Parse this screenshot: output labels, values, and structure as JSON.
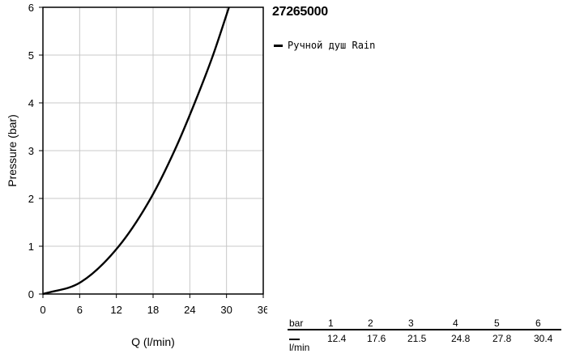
{
  "header": {
    "product_code": "27265000"
  },
  "legend": {
    "label": "Ручной душ Rain"
  },
  "chart_data": {
    "type": "line",
    "title": "27265000",
    "xlabel": "Q (l/min)",
    "ylabel": "Pressure (bar)",
    "xlim": [
      0,
      36
    ],
    "ylim": [
      0,
      6
    ],
    "xticks": [
      0,
      6,
      12,
      18,
      24,
      30,
      36
    ],
    "yticks": [
      0,
      1,
      2,
      3,
      4,
      5,
      6
    ],
    "grid": true,
    "legend_position": "top-right outside",
    "series": [
      {
        "name": "Ручной душ Rain",
        "color": "#000000",
        "points": [
          {
            "x": 0,
            "y": 0
          },
          {
            "x": 6.2,
            "y": 0.25
          },
          {
            "x": 12.4,
            "y": 1
          },
          {
            "x": 17.6,
            "y": 2
          },
          {
            "x": 21.5,
            "y": 3
          },
          {
            "x": 24.8,
            "y": 4
          },
          {
            "x": 27.8,
            "y": 5
          },
          {
            "x": 30.4,
            "y": 6
          }
        ]
      }
    ]
  },
  "table": {
    "row_bar_unit": "bar",
    "row_lmin_unit": "l/min",
    "bar_values": [
      "1",
      "2",
      "3",
      "4",
      "5",
      "6"
    ],
    "lmin_values": [
      "12.4",
      "17.6",
      "21.5",
      "24.8",
      "27.8",
      "30.4"
    ]
  }
}
